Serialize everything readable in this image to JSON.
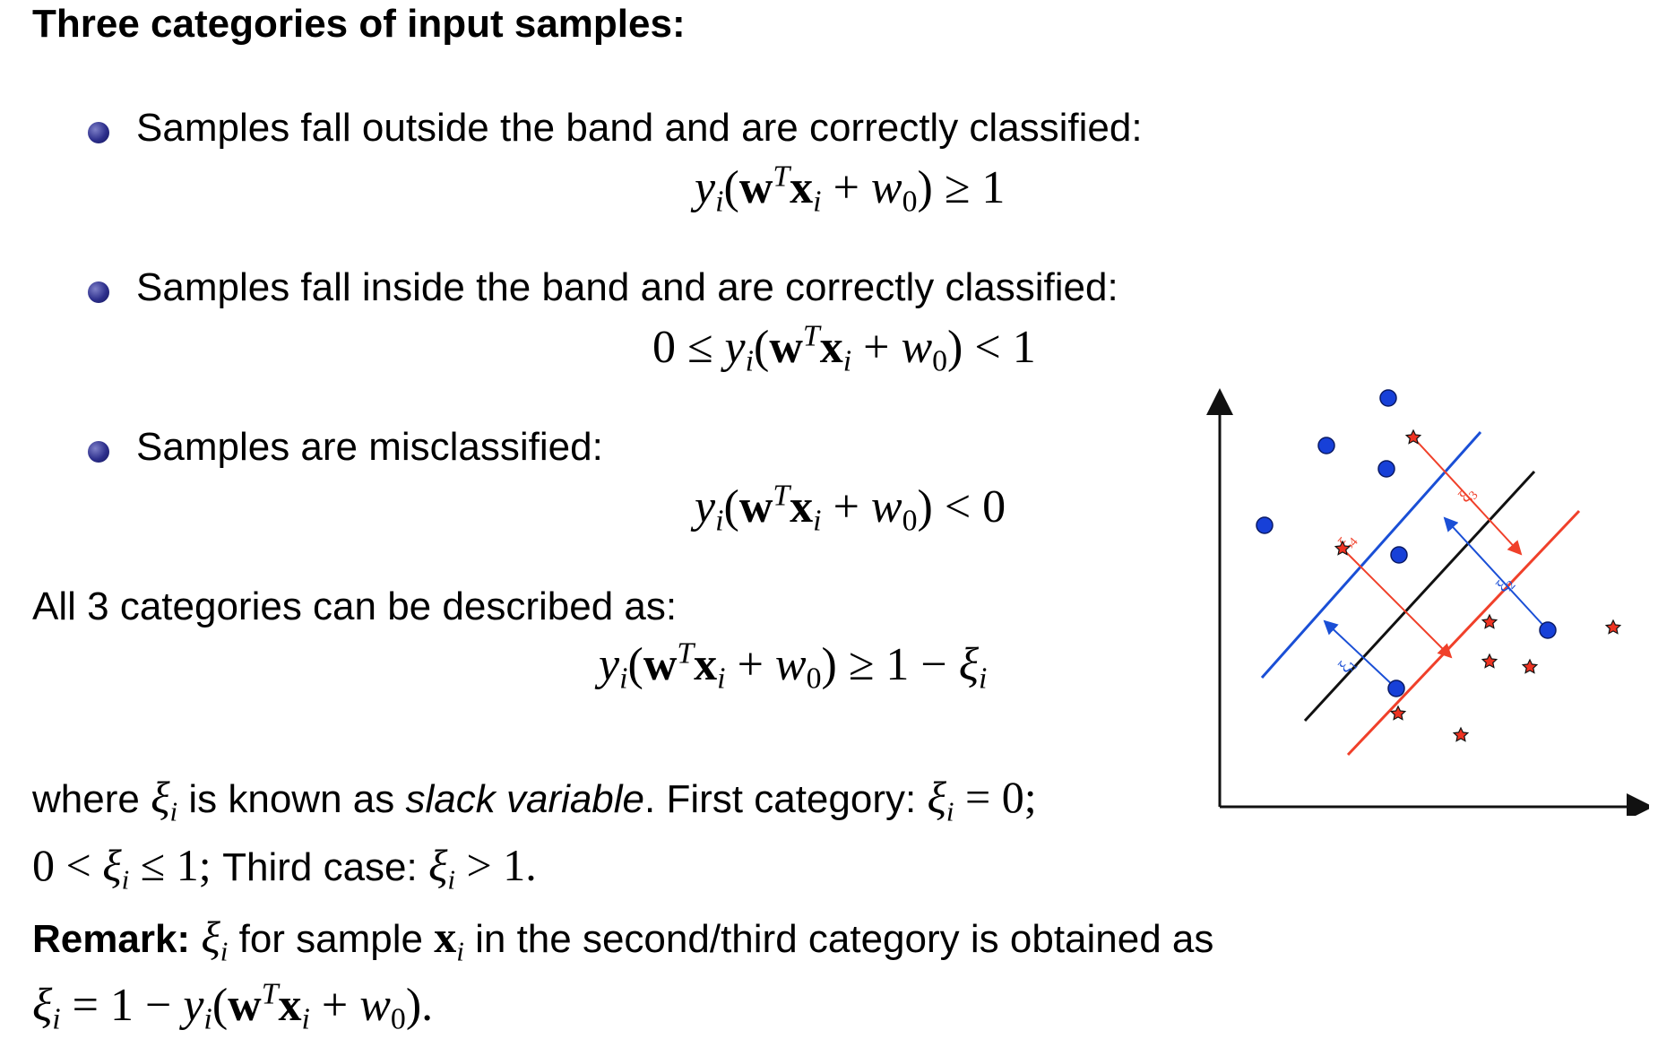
{
  "heading": "Three categories of input samples:",
  "bullets": [
    {
      "text": "Samples fall outside the band and are correctly classified:"
    },
    {
      "text": "Samples fall inside the band and are correctly classified:"
    },
    {
      "text": "Samples are misclassified:"
    }
  ],
  "equations": {
    "eq1": {
      "prefix": "",
      "relation": "≥",
      "rhs": "1"
    },
    "eq2": {
      "prefix": "0 ≤ ",
      "relation": "<",
      "rhs": "1"
    },
    "eq3": {
      "prefix": "",
      "relation": "<",
      "rhs": "0"
    },
    "eq4": {
      "prefix": "",
      "relation": "≥",
      "rhs": "1 − "
    }
  },
  "summary": "All 3 categories can be described as:",
  "where_line": {
    "w1": "where ",
    "w2": " is known as ",
    "slack": "slack variable",
    "w3": ". First category: ",
    "eq": " = 0;"
  },
  "second_line": {
    "lead": "0 < ",
    "mid": " ≤ 1; ",
    "third": "Third case: ",
    "tail": " > 1."
  },
  "remark": {
    "label": "Remark:",
    "t1": " for sample ",
    "t2": " in the second/third category is obtained as"
  },
  "final_eq": {
    "lhs_eq": " = 1 − "
  },
  "diagram": {
    "labels": {
      "xi1": "ξ1",
      "xi2": "ξ2",
      "xi3": "ξ3",
      "xi4": "ξ4"
    },
    "colors": {
      "blue": "#1a4fd6",
      "red": "#f0402a",
      "black": "#111111",
      "dot": "#1740d8",
      "star": "#ee3322"
    }
  }
}
